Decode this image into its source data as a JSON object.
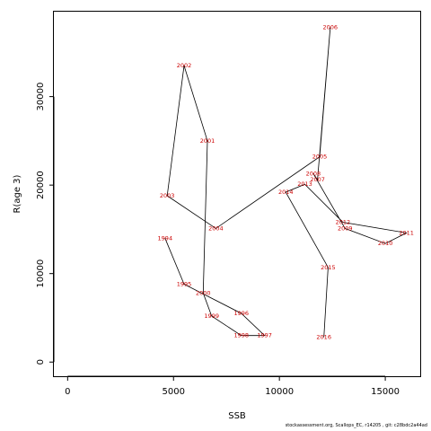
{
  "chart_data": {
    "type": "line",
    "xlabel": "SSB",
    "ylabel": "R(age 3)",
    "xlim": [
      -650,
      16650
    ],
    "ylim": [
      -1600,
      39600
    ],
    "x_ticks": [
      0,
      5000,
      10000,
      15000
    ],
    "y_ticks": [
      0,
      10000,
      20000,
      30000
    ],
    "x_tick_labels": [
      "0",
      "5000",
      "10000",
      "15000"
    ],
    "y_tick_labels": [
      "0",
      "10000",
      "20000",
      "30000"
    ],
    "line_color": "#000000",
    "label_color": "#cc0000",
    "grid": false,
    "points": [
      {
        "year": "1994",
        "x": 4600,
        "y": 14000
      },
      {
        "year": "1995",
        "x": 5500,
        "y": 8800
      },
      {
        "year": "1996",
        "x": 8200,
        "y": 5500
      },
      {
        "year": "1997",
        "x": 9300,
        "y": 3000
      },
      {
        "year": "1998",
        "x": 8200,
        "y": 3000
      },
      {
        "year": "1999",
        "x": 6800,
        "y": 5200
      },
      {
        "year": "2000",
        "x": 6400,
        "y": 7800
      },
      {
        "year": "2001",
        "x": 6600,
        "y": 25000
      },
      {
        "year": "2002",
        "x": 5500,
        "y": 33500
      },
      {
        "year": "2003",
        "x": 4700,
        "y": 18800
      },
      {
        "year": "2004",
        "x": 7000,
        "y": 15100
      },
      {
        "year": "2005",
        "x": 11900,
        "y": 23200
      },
      {
        "year": "2006",
        "x": 12400,
        "y": 37800
      },
      {
        "year": "2007",
        "x": 11800,
        "y": 20600
      },
      {
        "year": "2008",
        "x": 11600,
        "y": 21300
      },
      {
        "year": "2009",
        "x": 13100,
        "y": 15100
      },
      {
        "year": "2010",
        "x": 15000,
        "y": 13400
      },
      {
        "year": "2011",
        "x": 16000,
        "y": 14600
      },
      {
        "year": "2012",
        "x": 13000,
        "y": 15800
      },
      {
        "year": "2013",
        "x": 11200,
        "y": 20100
      },
      {
        "year": "2014",
        "x": 10300,
        "y": 19200
      },
      {
        "year": "2015",
        "x": 12300,
        "y": 10700
      },
      {
        "year": "2016",
        "x": 12100,
        "y": 2800
      }
    ]
  },
  "footer_text": "stockassessment.org, Scallops_EC, r14205 , git: c28bdc2a44ad"
}
